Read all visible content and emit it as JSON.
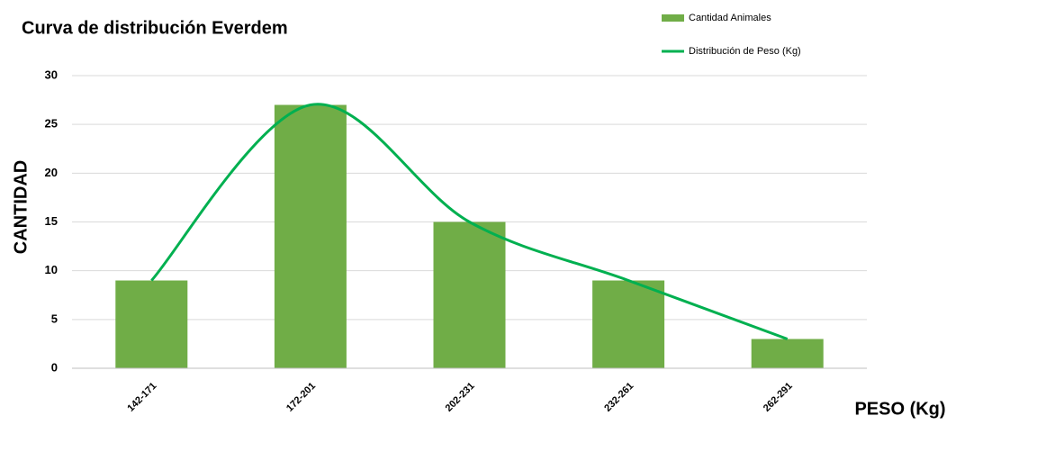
{
  "chart_data": {
    "type": "bar_line",
    "title": "Curva de distribución Everdem",
    "y_label": "CANTIDAD",
    "x_label": "PESO (Kg)",
    "categories": [
      "142-171",
      "172-201",
      "202-231",
      "232-261",
      "262-291"
    ],
    "series": [
      {
        "name": "Cantidad Animales",
        "type": "bar",
        "color": "#70ad47",
        "values": [
          9,
          27,
          15,
          9,
          3
        ]
      },
      {
        "name": "Distribución de Peso (Kg)",
        "type": "line",
        "smooth": true,
        "color": "#00b050",
        "values": [
          9,
          27,
          15,
          9,
          3
        ]
      }
    ],
    "ylim": [
      0,
      30
    ],
    "yticks": [
      0,
      5,
      10,
      15,
      20,
      25,
      30
    ],
    "grid": true,
    "axis_label_color": "#70ad47"
  }
}
